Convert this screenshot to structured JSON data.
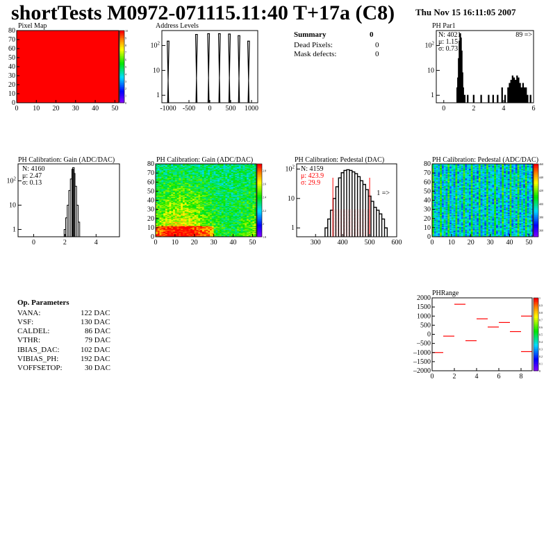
{
  "header": {
    "title": "shortTests M0972-071115.11:40 T+17a (C8)",
    "date": "Thu Nov 15 16:11:05 2007"
  },
  "summary": {
    "heading": "Summary",
    "heading_value": "0",
    "rows": [
      {
        "label": "Dead Pixels:",
        "value": "0"
      },
      {
        "label": "Mask defects:",
        "value": "0"
      }
    ]
  },
  "op_params": {
    "heading": "Op. Parameters",
    "rows": [
      {
        "label": "VANA:",
        "value": "122 DAC"
      },
      {
        "label": "VSF:",
        "value": "130 DAC"
      },
      {
        "label": "CALDEL:",
        "value": "86 DAC"
      },
      {
        "label": "VTHR:",
        "value": "79 DAC"
      },
      {
        "label": "IBIAS_DAC:",
        "value": "102 DAC"
      },
      {
        "label": "VIBIAS_PH:",
        "value": "192 DAC"
      },
      {
        "label": "VOFFSETOP:",
        "value": "30 DAC"
      }
    ]
  },
  "colors": {
    "red": "#ff0000",
    "line": "#000000",
    "frame": "#000000",
    "stat_red": "#ff0000"
  },
  "chart_data": [
    {
      "id": "pixel-map",
      "type": "heatmap",
      "title": "Pixel Map",
      "xlim": [
        0,
        52
      ],
      "ylim": [
        0,
        80
      ],
      "xticks": [
        "0",
        "10",
        "20",
        "30",
        "40",
        "50"
      ],
      "yticks": [
        "0",
        "10",
        "20",
        "30",
        "40",
        "50",
        "60",
        "70",
        "80"
      ],
      "uniform_value": 10,
      "zlim": [
        0,
        10
      ],
      "zticks": [
        "0",
        "1",
        "2",
        "3",
        "4",
        "5",
        "6",
        "7",
        "8",
        "9",
        "10"
      ]
    },
    {
      "id": "address-levels",
      "type": "bar",
      "title": "Address Levels",
      "xlim": [
        -1150,
        1150
      ],
      "ylog": true,
      "ylim": [
        0.5,
        400
      ],
      "xticks": [
        "-1000",
        "-500",
        "0",
        "500",
        "1000"
      ],
      "yticks": [
        "1",
        "10",
        "10^2"
      ],
      "peaks": [
        {
          "x": -1000,
          "h": 150
        },
        {
          "x": -320,
          "h": 280
        },
        {
          "x": -30,
          "h": 300
        },
        {
          "x": 230,
          "h": 300
        },
        {
          "x": 470,
          "h": 290
        },
        {
          "x": 700,
          "h": 250
        },
        {
          "x": 930,
          "h": 150
        }
      ]
    },
    {
      "id": "ph-par1",
      "type": "histogram",
      "title": "PH Par1",
      "xlim": [
        -0.5,
        6
      ],
      "ylog": true,
      "ylim": [
        0.5,
        400
      ],
      "xticks": [
        "0",
        "2",
        "4",
        "6"
      ],
      "yticks": [
        "1",
        "10",
        "10^2"
      ],
      "stats": [
        {
          "sym": "N: ",
          "val": "4021"
        },
        {
          "sym": "μ: ",
          "val": "1.15"
        },
        {
          "sym": "σ: ",
          "val": "0.73"
        }
      ],
      "overflow_label": "89 =>",
      "bins": [
        [
          0.9,
          2
        ],
        [
          0.95,
          5
        ],
        [
          1.0,
          30
        ],
        [
          1.05,
          150
        ],
        [
          1.1,
          300
        ],
        [
          1.15,
          200
        ],
        [
          1.2,
          60
        ],
        [
          1.25,
          8
        ],
        [
          1.3,
          2
        ],
        [
          1.4,
          1
        ],
        [
          1.6,
          1
        ],
        [
          2.0,
          1
        ],
        [
          2.5,
          1
        ],
        [
          3.0,
          1
        ],
        [
          3.3,
          1
        ],
        [
          3.6,
          1
        ],
        [
          3.9,
          2
        ],
        [
          4.1,
          1
        ],
        [
          4.3,
          2
        ],
        [
          4.4,
          3
        ],
        [
          4.5,
          4
        ],
        [
          4.6,
          6
        ],
        [
          4.7,
          5
        ],
        [
          4.8,
          4
        ],
        [
          4.9,
          6
        ],
        [
          5.0,
          5
        ],
        [
          5.1,
          3
        ],
        [
          5.2,
          2
        ],
        [
          5.3,
          3
        ],
        [
          5.4,
          2
        ],
        [
          5.5,
          2
        ],
        [
          5.6,
          1
        ],
        [
          5.8,
          1
        ]
      ]
    },
    {
      "id": "ph-gain-hist",
      "type": "histogram",
      "title": "PH Calibration: Gain (ADC/DAC)",
      "xlim": [
        -1,
        5.5
      ],
      "ylog": true,
      "ylim": [
        0.5,
        500
      ],
      "xticks": [
        "0",
        "2",
        "4"
      ],
      "yticks": [
        "1",
        "10",
        "10^2"
      ],
      "stats": [
        {
          "sym": "N: ",
          "val": "4160"
        },
        {
          "sym": "μ: ",
          "val": "2.47"
        },
        {
          "sym": "σ: ",
          "val": "0.13"
        }
      ],
      "bins": [
        [
          2.0,
          1
        ],
        [
          2.1,
          3
        ],
        [
          2.2,
          10
        ],
        [
          2.3,
          40
        ],
        [
          2.4,
          120
        ],
        [
          2.5,
          300
        ],
        [
          2.55,
          350
        ],
        [
          2.6,
          200
        ],
        [
          2.7,
          60
        ],
        [
          2.8,
          10
        ],
        [
          2.9,
          2
        ]
      ]
    },
    {
      "id": "ph-gain-map",
      "type": "heatmap",
      "title": "PH Calibration: Gain (ADC/DAC)",
      "xlim": [
        0,
        52
      ],
      "ylim": [
        0,
        80
      ],
      "xticks": [
        "0",
        "10",
        "20",
        "30",
        "40",
        "50"
      ],
      "yticks": [
        "0",
        "10",
        "20",
        "30",
        "40",
        "50",
        "60",
        "70",
        "80"
      ],
      "zlim": [
        1.8,
        2.9
      ],
      "zticks": [
        "1.8",
        "2",
        "2.2",
        "2.4",
        "2.6",
        "2.8"
      ]
    },
    {
      "id": "ph-pedestal-hist",
      "type": "histogram",
      "title": "PH Calibration: Pedestal (DAC)",
      "xlim": [
        230,
        600
      ],
      "ylog": true,
      "ylim": [
        0.5,
        150
      ],
      "xticks": [
        "300",
        "400",
        "500",
        "600"
      ],
      "yticks": [
        "1",
        "10",
        "10^2"
      ],
      "stats": [
        {
          "sym": "N: ",
          "val": "4159"
        },
        {
          "sym": "μ: ",
          "val": "423.9"
        },
        {
          "sym": "σ: ",
          "val": "29.9"
        }
      ],
      "overflow_label": "1 =>",
      "cut_lines": [
        364,
        500
      ],
      "bins": [
        [
          340,
          1
        ],
        [
          350,
          2
        ],
        [
          360,
          4
        ],
        [
          370,
          10
        ],
        [
          380,
          25
        ],
        [
          390,
          50
        ],
        [
          400,
          75
        ],
        [
          410,
          90
        ],
        [
          420,
          95
        ],
        [
          430,
          90
        ],
        [
          440,
          80
        ],
        [
          450,
          70
        ],
        [
          460,
          55
        ],
        [
          470,
          40
        ],
        [
          480,
          30
        ],
        [
          490,
          20
        ],
        [
          500,
          12
        ],
        [
          510,
          8
        ],
        [
          520,
          5
        ],
        [
          530,
          4
        ],
        [
          540,
          3
        ],
        [
          550,
          2
        ],
        [
          560,
          1
        ]
      ]
    },
    {
      "id": "ph-pedestal-map",
      "type": "heatmap",
      "title": "PH Calibration: Pedestal (ADC/DAC)",
      "xlim": [
        0,
        52
      ],
      "ylim": [
        0,
        80
      ],
      "xticks": [
        "0",
        "10",
        "20",
        "30",
        "40",
        "50"
      ],
      "yticks": [
        "0",
        "10",
        "20",
        "30",
        "40",
        "50",
        "60",
        "70",
        "80"
      ],
      "zlim": [
        350,
        460
      ],
      "zticks": [
        "360",
        "380",
        "400",
        "420",
        "440",
        "460"
      ]
    },
    {
      "id": "ph-range",
      "type": "scatter",
      "title": "PHRange",
      "xlim": [
        0,
        9
      ],
      "ylim": [
        -2000,
        2000
      ],
      "xticks": [
        "0",
        "2",
        "4",
        "6",
        "8"
      ],
      "yticks": [
        "-2000",
        "-1500",
        "-1000",
        "-500",
        "0",
        "500",
        "1000",
        "1500",
        "2000"
      ],
      "zticks": [
        "0",
        "0.1",
        "0.2",
        "0.3",
        "0.4",
        "0.5",
        "0.6",
        "0.7",
        "0.8",
        "0.9",
        "1"
      ],
      "segments": [
        [
          0,
          -1000
        ],
        [
          1,
          -100
        ],
        [
          2,
          1650
        ],
        [
          3,
          -350
        ],
        [
          4,
          850
        ],
        [
          5,
          400
        ],
        [
          6,
          650
        ],
        [
          7,
          150
        ],
        [
          8,
          1000
        ],
        [
          8,
          -950
        ]
      ]
    }
  ]
}
